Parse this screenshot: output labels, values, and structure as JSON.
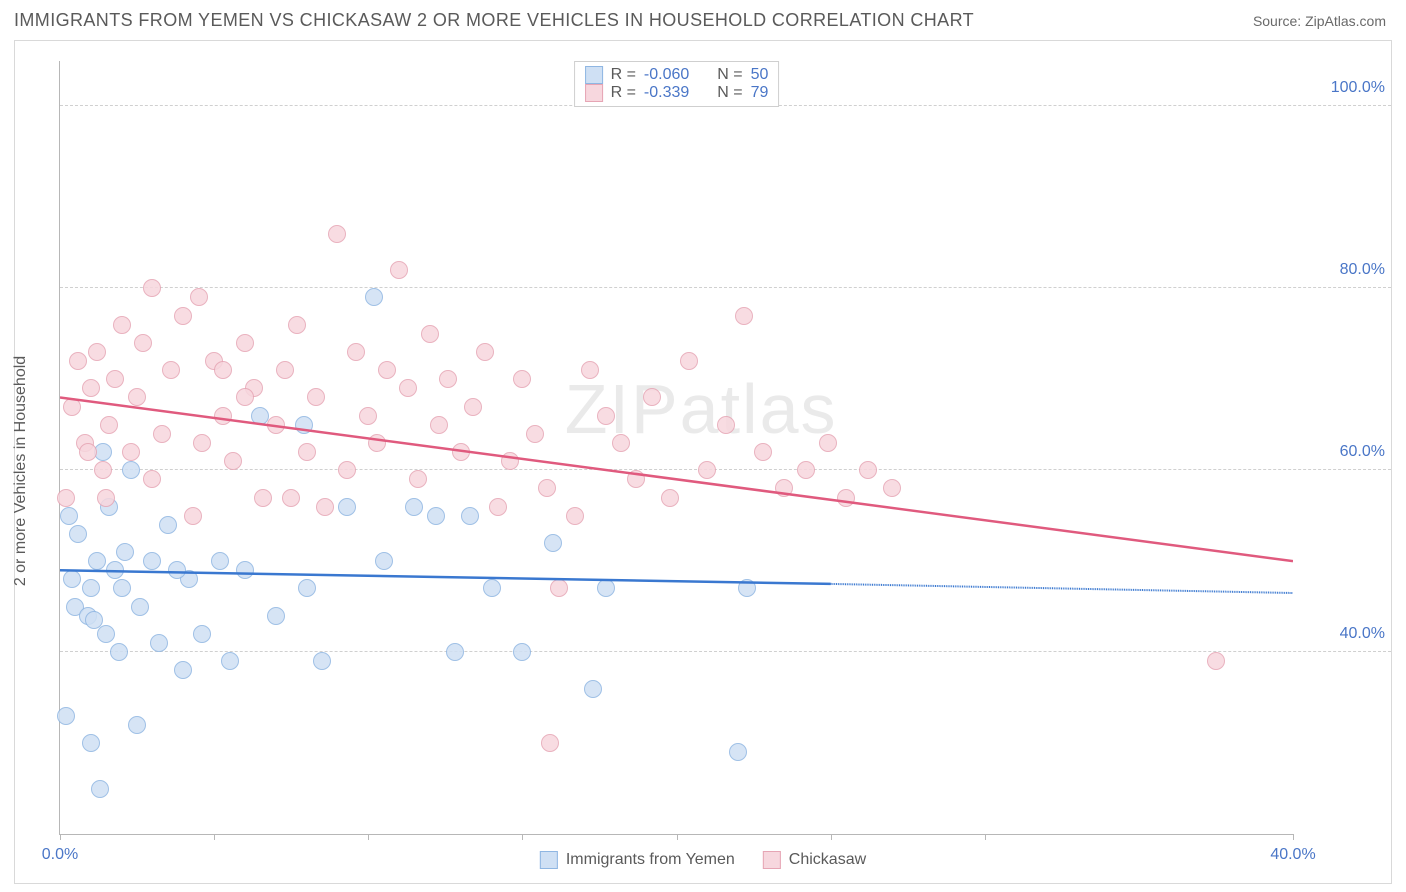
{
  "header": {
    "title": "IMMIGRANTS FROM YEMEN VS CHICKASAW 2 OR MORE VEHICLES IN HOUSEHOLD CORRELATION CHART",
    "source_prefix": "Source: ",
    "source_name": "ZipAtlas.com"
  },
  "watermark": "ZIPatlas",
  "chart": {
    "type": "scatter",
    "ylabel": "2 or more Vehicles in Household",
    "xlim": [
      0,
      40
    ],
    "ylim": [
      20,
      105
    ],
    "background_color": "#ffffff",
    "grid_color": "#d0d0d0",
    "axis_color": "#b7b7b7",
    "tick_label_color": "#4a76c7",
    "label_color": "#5a5a5a",
    "label_fontsize": 16,
    "xticks": [
      {
        "pos": 0,
        "label": "0.0%"
      },
      {
        "pos": 5,
        "label": ""
      },
      {
        "pos": 10,
        "label": ""
      },
      {
        "pos": 15,
        "label": ""
      },
      {
        "pos": 20,
        "label": ""
      },
      {
        "pos": 25,
        "label": ""
      },
      {
        "pos": 30,
        "label": ""
      },
      {
        "pos": 40,
        "label": "40.0%"
      }
    ],
    "yticks": [
      {
        "pos": 40,
        "label": "40.0%"
      },
      {
        "pos": 60,
        "label": "60.0%"
      },
      {
        "pos": 80,
        "label": "80.0%"
      },
      {
        "pos": 100,
        "label": "100.0%"
      }
    ],
    "series": [
      {
        "id": "yemen",
        "label": "Immigrants from Yemen",
        "fill": "#cfe0f4",
        "stroke": "#8fb6e2",
        "line_color": "#3a78d0",
        "line_width": 2.5,
        "marker_radius": 9,
        "R": "-0.060",
        "N": "50",
        "trend": {
          "x1": 0,
          "y1": 49,
          "x2": 25,
          "y2": 47.5,
          "x_extend": 40,
          "y_extend": 46.5
        },
        "points": [
          [
            0.3,
            55
          ],
          [
            0.4,
            48
          ],
          [
            0.5,
            45
          ],
          [
            0.6,
            53
          ],
          [
            0.9,
            44
          ],
          [
            1.0,
            47
          ],
          [
            1.1,
            43.5
          ],
          [
            1.2,
            50
          ],
          [
            1.4,
            62
          ],
          [
            1.5,
            42
          ],
          [
            1.6,
            56
          ],
          [
            1.8,
            49
          ],
          [
            1.9,
            40
          ],
          [
            2.0,
            47
          ],
          [
            2.1,
            51
          ],
          [
            2.3,
            60
          ],
          [
            2.5,
            32
          ],
          [
            2.6,
            45
          ],
          [
            3.0,
            50
          ],
          [
            3.2,
            41
          ],
          [
            3.5,
            54
          ],
          [
            4.0,
            38
          ],
          [
            4.2,
            48
          ],
          [
            4.6,
            42
          ],
          [
            5.2,
            50
          ],
          [
            5.5,
            39
          ],
          [
            6.0,
            49
          ],
          [
            6.5,
            66
          ],
          [
            7.0,
            44
          ],
          [
            7.9,
            65
          ],
          [
            8.0,
            47
          ],
          [
            8.5,
            39
          ],
          [
            9.3,
            56
          ],
          [
            10.2,
            79
          ],
          [
            10.5,
            50
          ],
          [
            11.5,
            56
          ],
          [
            12.2,
            55
          ],
          [
            12.8,
            40
          ],
          [
            13.3,
            55
          ],
          [
            14.0,
            47
          ],
          [
            15.0,
            40
          ],
          [
            16.0,
            52
          ],
          [
            17.3,
            36
          ],
          [
            17.7,
            47
          ],
          [
            22.0,
            29
          ],
          [
            22.3,
            47
          ],
          [
            1.0,
            30
          ],
          [
            0.2,
            33
          ],
          [
            3.8,
            49
          ],
          [
            1.3,
            25
          ]
        ]
      },
      {
        "id": "chickasaw",
        "label": "Chickasaw",
        "fill": "#f7d7de",
        "stroke": "#e6a5b4",
        "line_color": "#e05a7e",
        "line_width": 2.5,
        "marker_radius": 9,
        "R": "-0.339",
        "N": "79",
        "trend": {
          "x1": 0,
          "y1": 68,
          "x2": 40,
          "y2": 50,
          "x_extend": 40,
          "y_extend": 50
        },
        "points": [
          [
            0.4,
            67
          ],
          [
            0.6,
            72
          ],
          [
            0.8,
            63
          ],
          [
            1.0,
            69
          ],
          [
            1.2,
            73
          ],
          [
            1.4,
            60
          ],
          [
            1.6,
            65
          ],
          [
            1.8,
            70
          ],
          [
            2.0,
            76
          ],
          [
            2.3,
            62
          ],
          [
            2.5,
            68
          ],
          [
            2.7,
            74
          ],
          [
            3.0,
            59
          ],
          [
            3.3,
            64
          ],
          [
            3.6,
            71
          ],
          [
            4.0,
            77
          ],
          [
            4.3,
            55
          ],
          [
            4.6,
            63
          ],
          [
            5.0,
            72
          ],
          [
            5.3,
            66
          ],
          [
            5.6,
            61
          ],
          [
            6.0,
            74
          ],
          [
            6.3,
            69
          ],
          [
            6.6,
            57
          ],
          [
            7.0,
            65
          ],
          [
            7.3,
            71
          ],
          [
            7.7,
            76
          ],
          [
            8.0,
            62
          ],
          [
            8.3,
            68
          ],
          [
            8.6,
            56
          ],
          [
            9.0,
            86
          ],
          [
            9.3,
            60
          ],
          [
            9.6,
            73
          ],
          [
            10.0,
            66
          ],
          [
            10.3,
            63
          ],
          [
            10.6,
            71
          ],
          [
            11.0,
            82
          ],
          [
            11.3,
            69
          ],
          [
            11.6,
            59
          ],
          [
            12.0,
            75
          ],
          [
            12.3,
            65
          ],
          [
            12.6,
            70
          ],
          [
            13.0,
            62
          ],
          [
            13.4,
            67
          ],
          [
            13.8,
            73
          ],
          [
            14.2,
            56
          ],
          [
            14.6,
            61
          ],
          [
            15.0,
            70
          ],
          [
            15.4,
            64
          ],
          [
            15.8,
            58
          ],
          [
            16.2,
            47
          ],
          [
            16.7,
            55
          ],
          [
            17.2,
            71
          ],
          [
            17.7,
            66
          ],
          [
            18.2,
            63
          ],
          [
            18.7,
            59
          ],
          [
            19.2,
            68
          ],
          [
            19.8,
            57
          ],
          [
            20.4,
            72
          ],
          [
            21.0,
            60
          ],
          [
            21.6,
            65
          ],
          [
            22.2,
            77
          ],
          [
            22.8,
            62
          ],
          [
            23.5,
            58
          ],
          [
            24.2,
            60
          ],
          [
            24.9,
            63
          ],
          [
            25.5,
            57
          ],
          [
            26.2,
            60
          ],
          [
            27.0,
            58
          ],
          [
            15.9,
            30
          ],
          [
            37.5,
            39
          ],
          [
            1.5,
            57
          ],
          [
            3.0,
            80
          ],
          [
            4.5,
            79
          ],
          [
            6.0,
            68
          ],
          [
            5.3,
            71
          ],
          [
            0.2,
            57
          ],
          [
            0.9,
            62
          ],
          [
            7.5,
            57
          ]
        ]
      }
    ],
    "legend_top": {
      "border_color": "#cfcfcf",
      "rows": [
        {
          "swatch_fill": "#cfe0f4",
          "swatch_stroke": "#8fb6e2",
          "r_label": "R =",
          "r_val": "-0.060",
          "n_label": "N =",
          "n_val": "50"
        },
        {
          "swatch_fill": "#f7d7de",
          "swatch_stroke": "#e6a5b4",
          "r_label": "R =",
          "r_val": "-0.339",
          "n_label": "N =",
          "n_val": "79"
        }
      ]
    },
    "legend_bottom": [
      {
        "swatch_fill": "#cfe0f4",
        "swatch_stroke": "#8fb6e2",
        "label": "Immigrants from Yemen"
      },
      {
        "swatch_fill": "#f7d7de",
        "swatch_stroke": "#e6a5b4",
        "label": "Chickasaw"
      }
    ]
  }
}
